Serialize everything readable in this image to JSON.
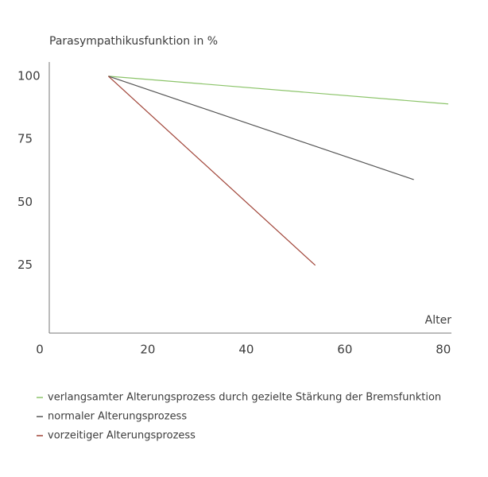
{
  "chart_data": {
    "type": "line",
    "y_label": "Parasympathikusfunktion in %",
    "x_label": "Alter",
    "xlim": [
      0,
      81
    ],
    "xticks": [
      0,
      20,
      40,
      60,
      80
    ],
    "ylim": [
      0,
      105
    ],
    "yticks": [
      25,
      50,
      75,
      100
    ],
    "grid": false,
    "series": [
      {
        "name": "verlangsamter Alterungsprozess durch gezielte Stärkung der Bremsfunktion",
        "color": "#8cc46a",
        "x": [
          12,
          81
        ],
        "values": [
          100,
          89
        ]
      },
      {
        "name": "normaler Alterungsprozess",
        "color": "#555555",
        "x": [
          12,
          74
        ],
        "values": [
          100,
          59
        ]
      },
      {
        "name": "vorzeitiger Alterungsprozess",
        "color": "#a04438",
        "x": [
          12,
          54
        ],
        "values": [
          100,
          25
        ]
      }
    ]
  }
}
